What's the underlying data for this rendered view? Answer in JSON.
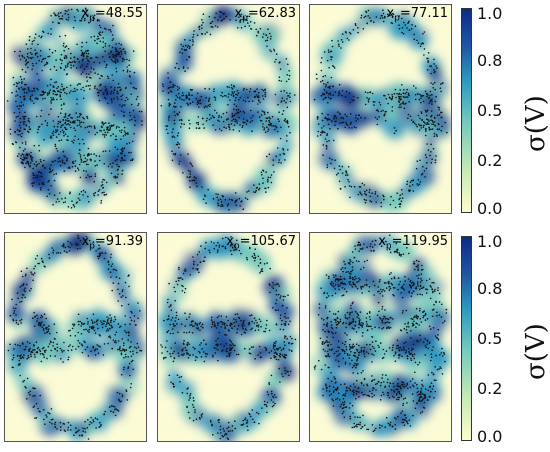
{
  "panels": [
    {
      "label_prefix": "x",
      "label_sub": "p",
      "label_value": "=48.55",
      "shape": "full"
    },
    {
      "label_prefix": "x",
      "label_sub": "p",
      "label_value": "=62.83",
      "shape": "rings"
    },
    {
      "label_prefix": "x",
      "label_sub": "p",
      "label_value": "=77.11",
      "shape": "rings"
    },
    {
      "label_prefix": "x",
      "label_sub": "p",
      "label_value": "=91.39",
      "shape": "rings"
    },
    {
      "label_prefix": "x",
      "label_sub": "p",
      "label_value": "=105.67",
      "shape": "rings"
    },
    {
      "label_prefix": "x",
      "label_sub": "p",
      "label_value": "=119.95",
      "shape": "full"
    }
  ],
  "colorbar": {
    "ticks": [
      "1.0",
      "0.8",
      "0.5",
      "0.2",
      "0.0"
    ],
    "label": "σ(V)",
    "colors": [
      "#fdfdcc",
      "#c9ebb4",
      "#72c8bd",
      "#2d97c0",
      "#1e55a2",
      "#0c2c84"
    ]
  }
}
